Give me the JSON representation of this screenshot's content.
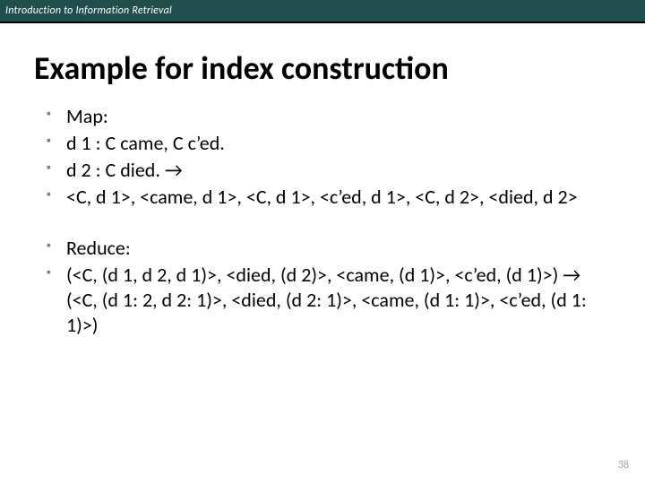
{
  "header": {
    "course_title": "Introduction to Information Retrieval"
  },
  "slide": {
    "title": "Example for index construction",
    "page_number": "38"
  },
  "map": {
    "heading": "Map:",
    "line1": "d 1 : C came, C c’ed.",
    "line2": "d 2 : C died. →",
    "line3": "<C, d 1>, <came, d 1>, <C, d 1>, <c’ed, d 1>, <C, d 2>, <died, d 2>"
  },
  "reduce": {
    "heading": "Reduce:",
    "line1": "(<C, (d 1, d 2, d 1)>, <died, (d 2)>, <came, (d 1)>, <c’ed, (d 1)>)  →  (<C, (d 1: 2, d 2: 1)>, <died, (d 2: 1)>, <came, (d 1: 1)>, <c’ed, (d 1: 1)>)"
  },
  "colors": {
    "header_bg": "#1f4e4d",
    "header_border": "#000000",
    "bullet": "#808080",
    "text": "#000000",
    "page_number": "#a6a6a6",
    "background": "#ffffff"
  },
  "typography": {
    "header_fontsize": 12,
    "title_fontsize": 36,
    "body_fontsize": 22,
    "pagenum_fontsize": 12
  }
}
